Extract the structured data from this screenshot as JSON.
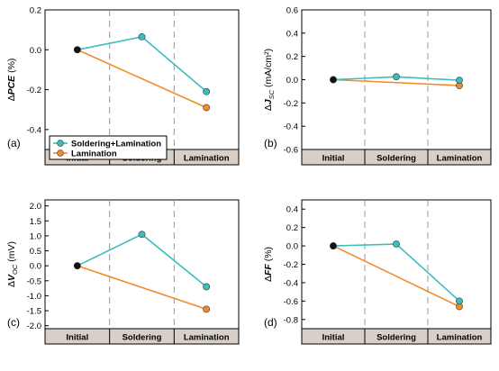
{
  "chart_data": [
    {
      "type": "line",
      "panel_label": "(a)",
      "ylabel_pre": "Δ",
      "ylabel_var": "PCE",
      "ylabel_sub": "",
      "ylabel_unit": " (%)",
      "ylim": [
        -0.5,
        0.2
      ],
      "yticks": [
        -0.4,
        -0.2,
        0.0,
        0.2
      ],
      "ytick_labels": [
        "-0.4",
        "-0.2",
        "0.0",
        "0.2"
      ],
      "categories": [
        "Initial",
        "Soldering",
        "Lamination"
      ],
      "grid": false,
      "legend": "bottom-left",
      "series": [
        {
          "name": "Soldering+Lamination",
          "values": [
            0.0,
            0.065,
            -0.21
          ]
        },
        {
          "name": "Lamination",
          "values": [
            0.0,
            null,
            -0.29
          ]
        }
      ]
    },
    {
      "type": "line",
      "panel_label": "(b)",
      "ylabel_pre": "Δ",
      "ylabel_var": "J",
      "ylabel_sub": "SC",
      "ylabel_unit": " (mA/cm²)",
      "ylim": [
        -0.6,
        0.6
      ],
      "yticks": [
        -0.6,
        -0.4,
        -0.2,
        0.0,
        0.2,
        0.4,
        0.6
      ],
      "ytick_labels": [
        "-0.6",
        "-0.4",
        "-0.2",
        "0.0",
        "0.2",
        "0.4",
        "0.6"
      ],
      "categories": [
        "Initial",
        "Soldering",
        "Lamination"
      ],
      "grid": false,
      "series": [
        {
          "name": "Soldering+Lamination",
          "values": [
            0.0,
            0.025,
            -0.005
          ]
        },
        {
          "name": "Lamination",
          "values": [
            0.0,
            null,
            -0.05
          ]
        }
      ]
    },
    {
      "type": "line",
      "panel_label": "(c)",
      "ylabel_pre": "Δ",
      "ylabel_var": "V",
      "ylabel_sub": "OC",
      "ylabel_unit": " (mV)",
      "ylim": [
        -2.1,
        2.2
      ],
      "yticks": [
        -2.0,
        -1.5,
        -1.0,
        -0.5,
        0.0,
        0.5,
        1.0,
        1.5,
        2.0
      ],
      "ytick_labels": [
        "-2.0",
        "-1.5",
        "-1.0",
        "-0.5",
        "0.0",
        "0.5",
        "1.0",
        "1.5",
        "2.0"
      ],
      "categories": [
        "Initial",
        "Soldering",
        "Lamination"
      ],
      "grid": false,
      "series": [
        {
          "name": "Soldering+Lamination",
          "values": [
            0.0,
            1.05,
            -0.7
          ]
        },
        {
          "name": "Lamination",
          "values": [
            0.0,
            null,
            -1.45
          ]
        }
      ]
    },
    {
      "type": "line",
      "panel_label": "(d)",
      "ylabel_pre": "Δ",
      "ylabel_var": "FF",
      "ylabel_sub": "",
      "ylabel_unit": " (%)",
      "ylim": [
        -0.9,
        0.5
      ],
      "yticks": [
        -0.8,
        -0.6,
        -0.4,
        -0.2,
        0.0,
        0.2,
        0.4
      ],
      "ytick_labels": [
        "-0.8",
        "-0.6",
        "-0.4",
        "-0.2",
        "0.0",
        "0.2",
        "0.4"
      ],
      "categories": [
        "Initial",
        "Soldering",
        "Lamination"
      ],
      "grid": false,
      "series": [
        {
          "name": "Soldering+Lamination",
          "values": [
            0.0,
            0.02,
            -0.6
          ]
        },
        {
          "name": "Lamination",
          "values": [
            0.0,
            null,
            -0.66
          ]
        }
      ]
    }
  ],
  "colors": {
    "soldering_lamination": "#3dbdbd",
    "lamination": "#f28c2b",
    "initial_point": "#111111",
    "category_bar": "#d8d0c8"
  }
}
